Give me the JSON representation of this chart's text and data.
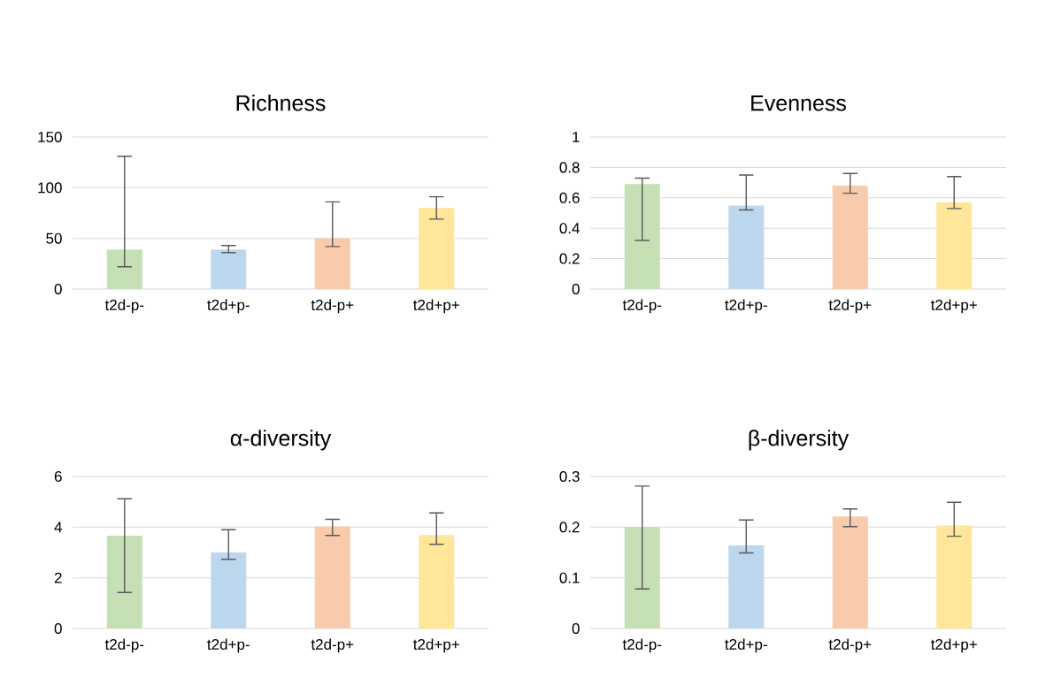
{
  "chart_data": [
    {
      "type": "bar",
      "title": "Richness",
      "categories": [
        "t2d-p-",
        "t2d+p-",
        "t2d-p+",
        "t2d+p+"
      ],
      "values": [
        39,
        39,
        50,
        80
      ],
      "colors": [
        "#c5e0b4",
        "#bdd7ee",
        "#f8cbad",
        "#ffe699"
      ],
      "errors": [
        [
          22,
          131
        ],
        [
          36,
          43
        ],
        [
          42,
          86
        ],
        [
          69,
          91
        ]
      ],
      "ylim": [
        0,
        150
      ],
      "yticks": [
        0,
        50,
        100,
        150
      ],
      "grid": "y"
    },
    {
      "type": "bar",
      "title": "Evenness",
      "categories": [
        "t2d-p-",
        "t2d+p-",
        "t2d-p+",
        "t2d+p+"
      ],
      "values": [
        0.69,
        0.55,
        0.68,
        0.57
      ],
      "colors": [
        "#c5e0b4",
        "#bdd7ee",
        "#f8cbad",
        "#ffe699"
      ],
      "errors": [
        [
          0.32,
          0.73
        ],
        [
          0.52,
          0.75
        ],
        [
          0.63,
          0.76
        ],
        [
          0.53,
          0.74
        ]
      ],
      "ylim": [
        0,
        1
      ],
      "yticks": [
        0,
        0.2,
        0.4,
        0.6,
        0.8,
        1
      ],
      "grid": "y"
    },
    {
      "type": "bar",
      "title": "α-diversity",
      "categories": [
        "t2d-p-",
        "t2d+p-",
        "t2d-p+",
        "t2d+p+"
      ],
      "values": [
        3.66,
        3.0,
        4.03,
        3.69
      ],
      "colors": [
        "#c5e0b4",
        "#bdd7ee",
        "#f8cbad",
        "#ffe699"
      ],
      "errors": [
        [
          1.42,
          5.12
        ],
        [
          2.73,
          3.9
        ],
        [
          3.67,
          4.31
        ],
        [
          3.32,
          4.56
        ]
      ],
      "ylim": [
        0,
        6
      ],
      "yticks": [
        0,
        2,
        4,
        6
      ],
      "grid": "y"
    },
    {
      "type": "bar",
      "title": "β-diversity",
      "categories": [
        "t2d-p-",
        "t2d+p-",
        "t2d-p+",
        "t2d+p+"
      ],
      "values": [
        0.2,
        0.164,
        0.221,
        0.203
      ],
      "colors": [
        "#c5e0b4",
        "#bdd7ee",
        "#f8cbad",
        "#ffe699"
      ],
      "errors": [
        [
          0.078,
          0.281
        ],
        [
          0.149,
          0.214
        ],
        [
          0.201,
          0.236
        ],
        [
          0.182,
          0.249
        ]
      ],
      "ylim": [
        0,
        0.3
      ],
      "yticks": [
        0,
        0.1,
        0.2,
        0.3
      ],
      "grid": "y"
    }
  ]
}
